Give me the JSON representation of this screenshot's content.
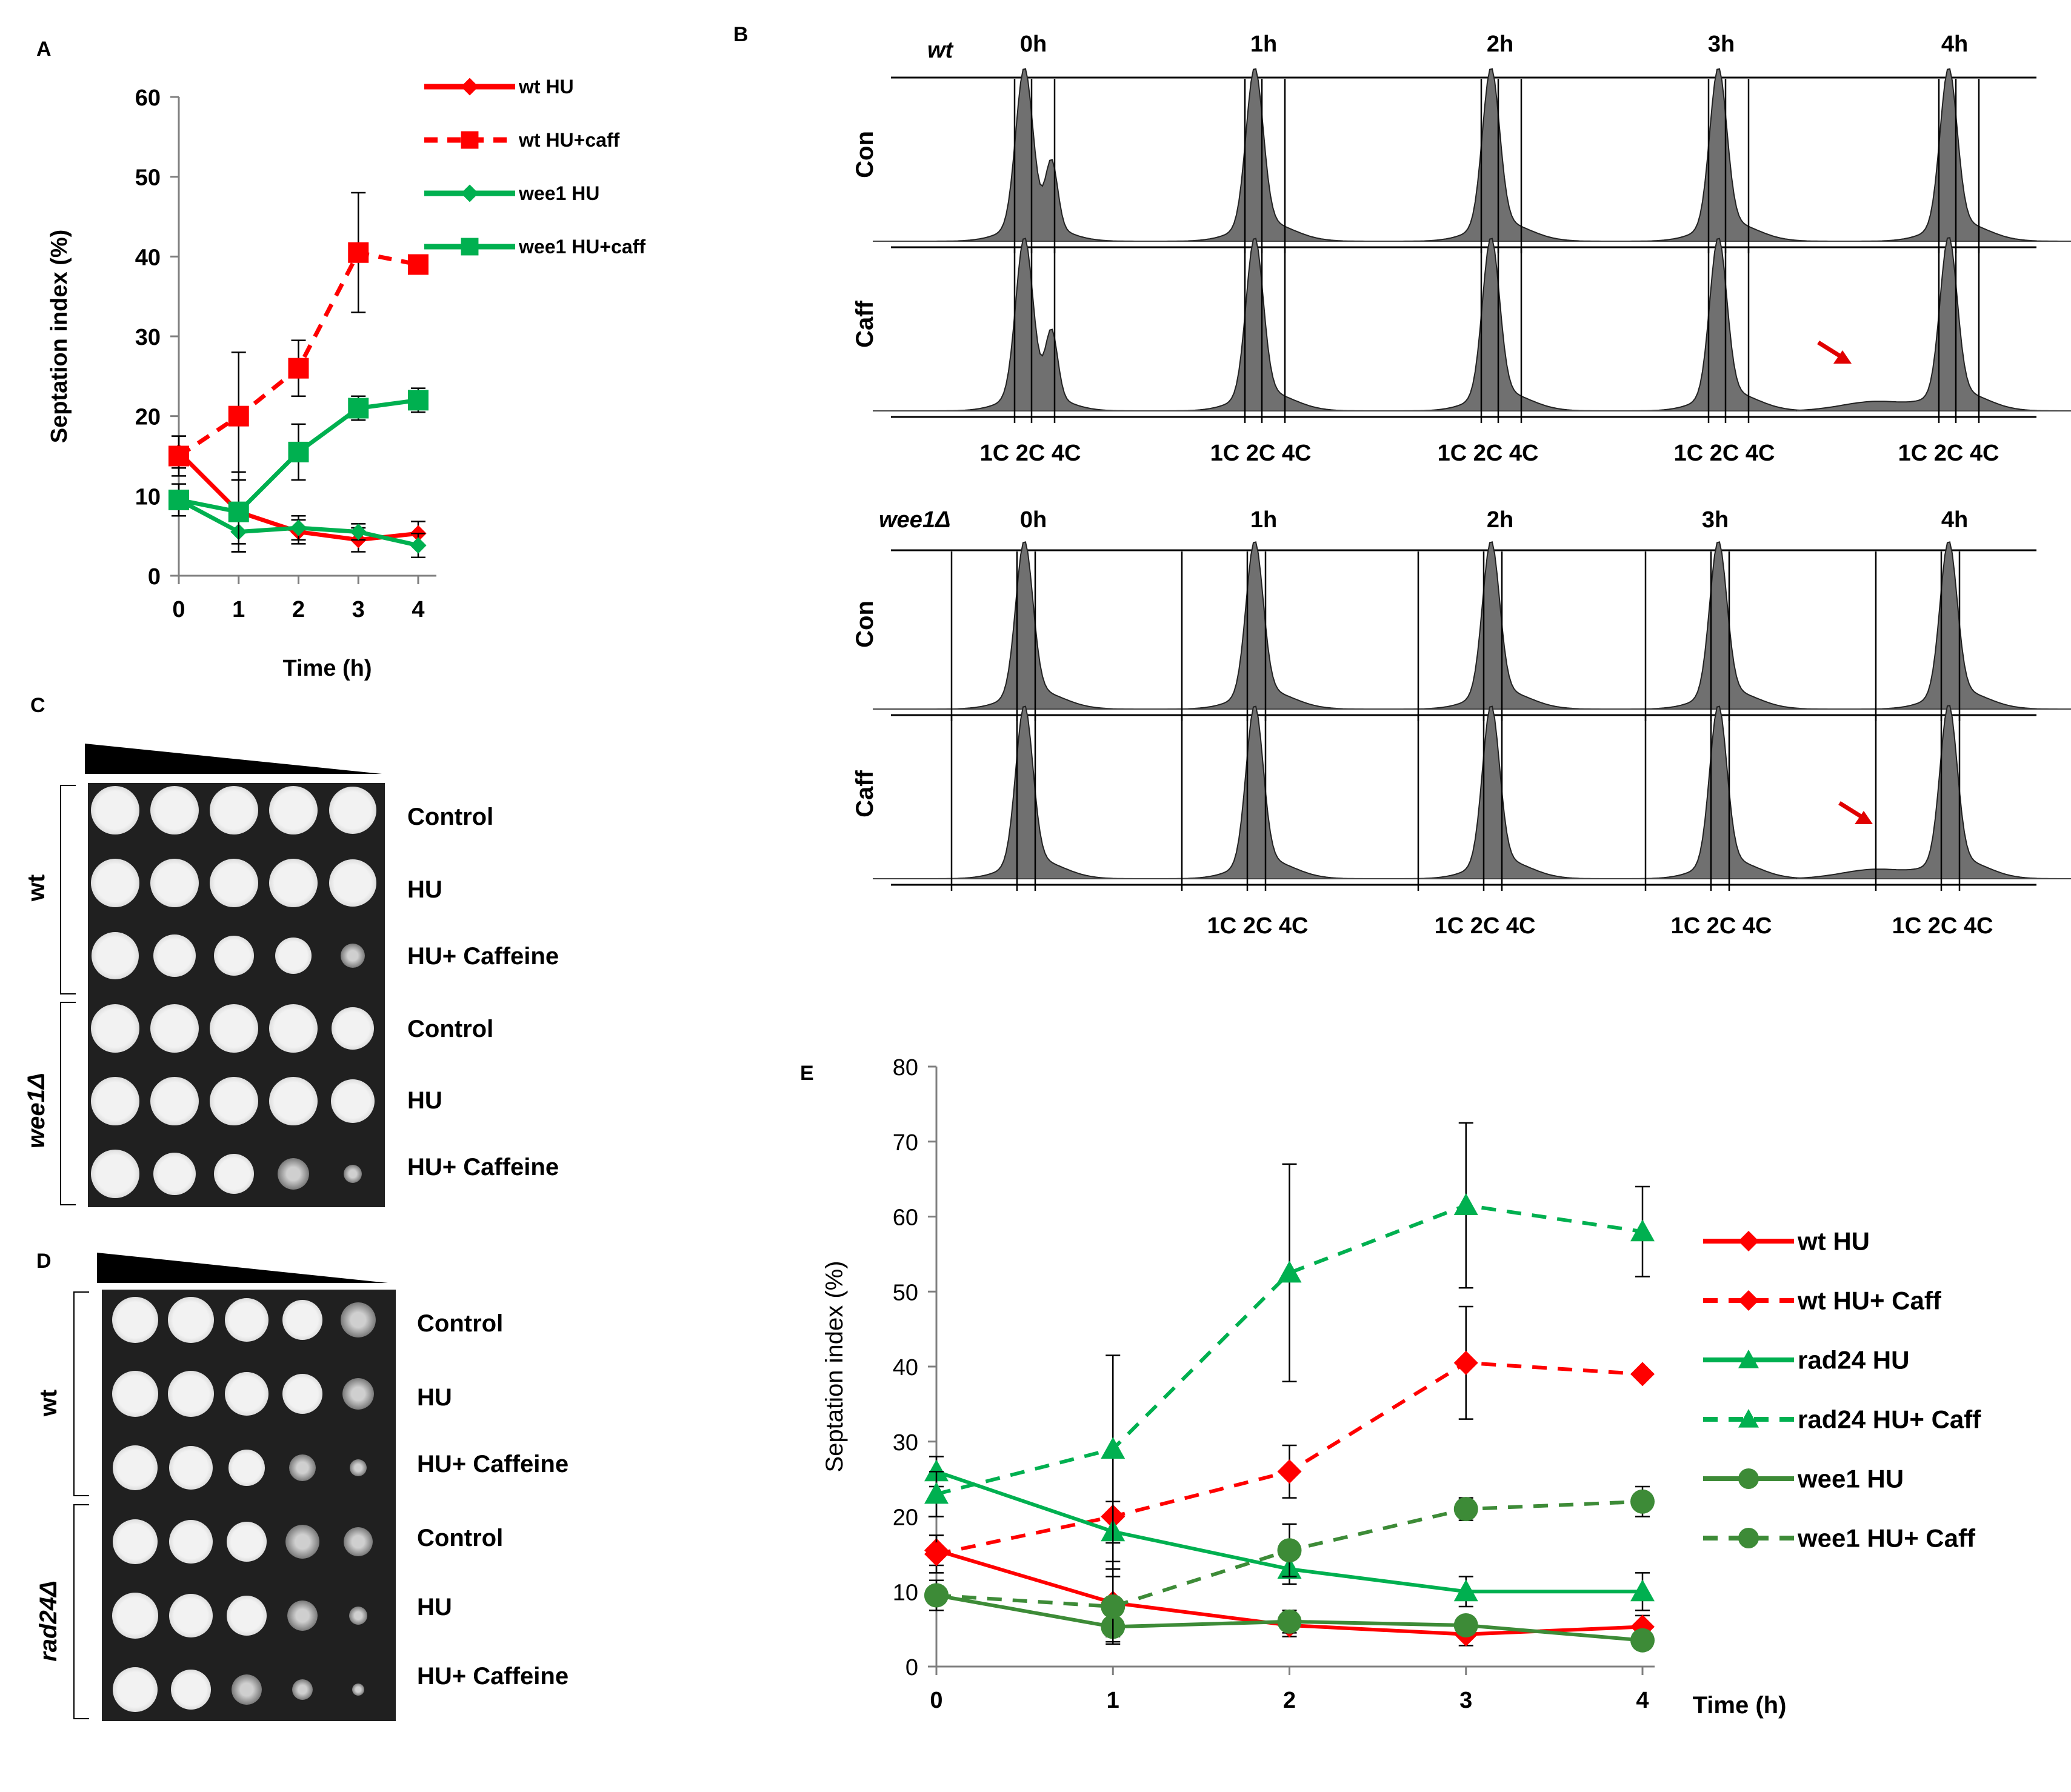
{
  "panel_labels": {
    "A": "A",
    "B": "B",
    "C": "C",
    "D": "D",
    "E": "E"
  },
  "chart_data": [
    {
      "panel": "A",
      "type": "line",
      "xlabel": "Time (h)",
      "ylabel": "Septation index (%)",
      "x": [
        0,
        1,
        2,
        3,
        4
      ],
      "xticks": [
        "0",
        "1",
        "2",
        "3",
        "4"
      ],
      "ylim": [
        0,
        60
      ],
      "yticks": [
        "0",
        "10",
        "20",
        "30",
        "40",
        "50",
        "60"
      ],
      "series": [
        {
          "name": "wt HU",
          "color": "#ff0000",
          "dash": "solid",
          "marker": "diamond-small",
          "values": [
            15.5,
            8,
            5.5,
            4.5,
            5.3
          ],
          "errors": [
            2,
            4,
            1.5,
            1.5,
            1.5
          ]
        },
        {
          "name": "wt HU+caff",
          "color": "#ff0000",
          "dash": "dashed",
          "marker": "square",
          "values": [
            15,
            20,
            26,
            40.5,
            39
          ],
          "errors": [
            2.5,
            8,
            3.5,
            7.5,
            0
          ]
        },
        {
          "name": "wee1 HU",
          "color": "#00b050",
          "dash": "solid",
          "marker": "diamond-small",
          "values": [
            9.5,
            5.5,
            6,
            5.5,
            3.8
          ],
          "errors": [
            2,
            2.5,
            1.5,
            1,
            1.5
          ]
        },
        {
          "name": "wee1 HU+caff",
          "color": "#00b050",
          "dash": "solid",
          "marker": "square",
          "values": [
            9.5,
            8,
            15.5,
            21,
            22
          ],
          "errors": [
            1,
            5,
            3.5,
            1.5,
            1.5
          ]
        }
      ]
    },
    {
      "panel": "E",
      "type": "line",
      "xlabel": "Time (h)",
      "ylabel": "Septation index (%)",
      "x": [
        0,
        1,
        2,
        3,
        4
      ],
      "xticks": [
        "0",
        "1",
        "2",
        "3",
        "4"
      ],
      "ylim": [
        0,
        80
      ],
      "yticks": [
        "0",
        "10",
        "20",
        "30",
        "40",
        "50",
        "60",
        "70",
        "80"
      ],
      "series": [
        {
          "name": "wt HU",
          "color": "#ff0000",
          "dash": "solid",
          "marker": "diamond",
          "values": [
            15.5,
            8.5,
            5.5,
            4.3,
            5.3
          ],
          "errors": [
            2,
            4.5,
            1.5,
            1.5,
            1.5
          ]
        },
        {
          "name": "wt HU+ Caff",
          "color": "#ff0000",
          "dash": "dashed",
          "marker": "diamond",
          "values": [
            15,
            20,
            26,
            40.5,
            39
          ],
          "errors": [
            2.5,
            8,
            3.5,
            7.5,
            0
          ]
        },
        {
          "name": "rad24 HU",
          "color": "#00b050",
          "dash": "solid",
          "marker": "triangle",
          "values": [
            26,
            18,
            13,
            10,
            10
          ],
          "errors": [
            2,
            4,
            2,
            2,
            2.5
          ]
        },
        {
          "name": "rad24 HU+ Caff",
          "color": "#00b050",
          "dash": "dashed",
          "marker": "triangle",
          "values": [
            23,
            29,
            52.5,
            61.5,
            58
          ],
          "errors": [
            3,
            12.5,
            14.5,
            11,
            6
          ]
        },
        {
          "name": "wee1 HU",
          "color": "#3d8b37",
          "dash": "solid",
          "marker": "circle",
          "values": [
            9.5,
            5.3,
            6,
            5.5,
            3.5
          ],
          "errors": [
            2,
            2,
            1.5,
            1,
            1
          ]
        },
        {
          "name": "wee1 HU+ Caff",
          "color": "#3d8b37",
          "dash": "dashed",
          "marker": "circle",
          "values": [
            9.5,
            8,
            15.5,
            21,
            22
          ],
          "errors": [
            1,
            5,
            3.5,
            1.5,
            2
          ]
        }
      ]
    }
  ],
  "flow": {
    "timepoints": [
      "0h",
      "1h",
      "2h",
      "3h",
      "4h"
    ],
    "wt_strain": "wt",
    "wee1_strain": "wee1Δ",
    "row_con": "Con",
    "row_caff": "Caff",
    "ploidy_labels": "1C 2C 4C"
  },
  "spot_c": {
    "strain_wt": "wt",
    "strain_mut": "wee1Δ",
    "conditions": [
      "Control",
      "HU",
      "HU+ Caffeine",
      "Control",
      "HU",
      "HU+ Caffeine"
    ]
  },
  "spot_d": {
    "strain_wt": "wt",
    "strain_mut": "rad24Δ",
    "conditions": [
      "Control",
      "HU",
      "HU+ Caffeine",
      "Control",
      "HU",
      "HU+ Caffeine"
    ]
  }
}
